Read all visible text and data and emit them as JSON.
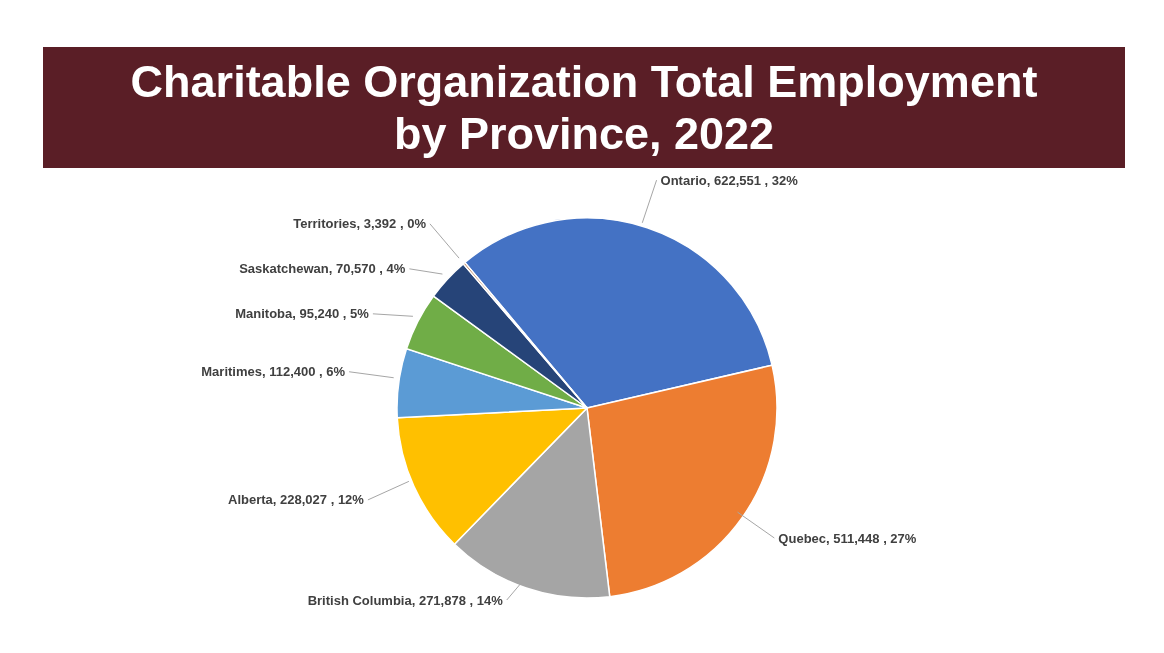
{
  "chart_data": {
    "type": "pie",
    "title": "Charitable Organization Total Employment by Province, 2022",
    "categories": [
      "Ontario",
      "Quebec",
      "British Columbia",
      "Alberta",
      "Maritimes",
      "Manitoba",
      "Saskatchewan",
      "Territories"
    ],
    "values": [
      622551,
      511448,
      271878,
      228027,
      112400,
      95240,
      70570,
      3392
    ],
    "value_labels": [
      "622,551 , 32%",
      "511,448 , 27%",
      "271,878 , 14%",
      "228,027 , 12%",
      "112,400 , 6%",
      "95,240 , 5%",
      "70,570 , 4%",
      "3,392 , 0%"
    ],
    "colors": [
      "#4472c4",
      "#ed7d31",
      "#a5a5a5",
      "#ffc000",
      "#5b9bd5",
      "#70ad47",
      "#264478",
      "#9e480e"
    ],
    "legend": false
  }
}
